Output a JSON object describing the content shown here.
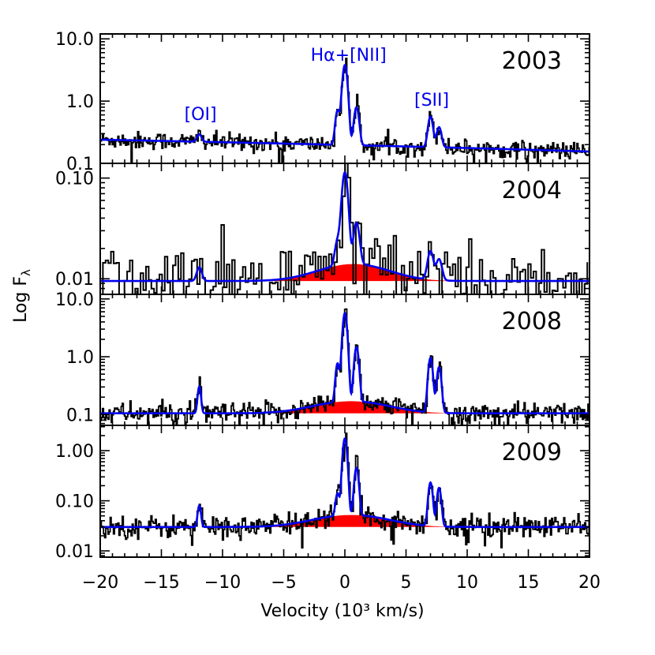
{
  "chart_data": {
    "type": "line",
    "xlabel": "Velocity (10³ km/s)",
    "ylabel": "Log F",
    "ylabel_sub": "λ",
    "xlim": [
      -20,
      20
    ],
    "xticks": [
      -20,
      -15,
      -10,
      -5,
      0,
      5,
      10,
      15,
      20
    ],
    "xtick_labels": [
      "−20",
      "−15",
      "−10",
      "−5",
      "0",
      "5",
      "10",
      "15",
      "20"
    ],
    "colors": {
      "observed": "#000000",
      "model": "#0000ee",
      "broad": "#ff0000"
    },
    "line_labels": [
      {
        "text": "[OI]",
        "panel": 0,
        "x": -11.8
      },
      {
        "text": "Hα+[NII]",
        "panel": 0,
        "x": 0.3
      },
      {
        "text": "[SII]",
        "panel": 0,
        "x": 7.1
      }
    ],
    "panels": [
      {
        "year": "2003",
        "ylim": [
          0.1,
          12
        ],
        "yticks": [
          0.1,
          1.0,
          10.0
        ],
        "ytick_labels": [
          "0.1",
          "1.0",
          "10.0"
        ],
        "continuum_start": 0.24,
        "continuum_end": 0.155,
        "noise": 0.07,
        "broad_amp": 0,
        "lines": [
          {
            "x": -11.9,
            "amp": 0.07,
            "w": 0.18
          },
          {
            "x": -0.6,
            "amp": 0.5,
            "w": 0.16
          },
          {
            "x": 0.0,
            "amp": 3.6,
            "w": 0.18
          },
          {
            "x": 0.95,
            "amp": 0.6,
            "w": 0.18
          },
          {
            "x": 7.0,
            "amp": 0.38,
            "w": 0.18
          },
          {
            "x": 7.7,
            "amp": 0.2,
            "w": 0.18
          }
        ]
      },
      {
        "year": "2004",
        "ylim": [
          0.007,
          0.14
        ],
        "yticks": [
          0.01,
          0.1
        ],
        "ytick_labels": [
          "0.01",
          "0.10"
        ],
        "continuum_start": 0.0095,
        "continuum_end": 0.0095,
        "noise": 0.17,
        "broad_amp": 0.0045,
        "broad_center": 0.7,
        "broad_sigma": 2.7,
        "lines": [
          {
            "x": -11.9,
            "amp": 0.0035,
            "w": 0.2
          },
          {
            "x": -0.6,
            "amp": 0.01,
            "w": 0.2
          },
          {
            "x": 0.0,
            "amp": 0.1,
            "w": 0.22
          },
          {
            "x": 0.95,
            "amp": 0.022,
            "w": 0.22
          },
          {
            "x": 7.0,
            "amp": 0.009,
            "w": 0.22
          },
          {
            "x": 7.7,
            "amp": 0.006,
            "w": 0.22
          }
        ]
      },
      {
        "year": "2008",
        "ylim": [
          0.065,
          12
        ],
        "yticks": [
          0.1,
          1.0,
          10.0
        ],
        "ytick_labels": [
          "0.1",
          "1.0",
          "10.0"
        ],
        "continuum_start": 0.105,
        "continuum_end": 0.105,
        "noise": 0.09,
        "broad_amp": 0.065,
        "broad_center": 0.5,
        "broad_sigma": 2.8,
        "lines": [
          {
            "x": -11.9,
            "amp": 0.2,
            "w": 0.12
          },
          {
            "x": -0.6,
            "amp": 0.6,
            "w": 0.14
          },
          {
            "x": 0.0,
            "amp": 5.5,
            "w": 0.16
          },
          {
            "x": 0.95,
            "amp": 1.3,
            "w": 0.16
          },
          {
            "x": 7.0,
            "amp": 0.85,
            "w": 0.16
          },
          {
            "x": 7.7,
            "amp": 0.55,
            "w": 0.16
          }
        ]
      },
      {
        "year": "2009",
        "ylim": [
          0.0075,
          3.2
        ],
        "yticks": [
          0.01,
          0.1,
          1.0
        ],
        "ytick_labels": [
          "0.01",
          "0.10",
          "1.00"
        ],
        "continuum_start": 0.03,
        "continuum_end": 0.03,
        "noise": 0.11,
        "broad_amp": 0.022,
        "broad_center": 0.5,
        "broad_sigma": 2.8,
        "lines": [
          {
            "x": -11.9,
            "amp": 0.05,
            "w": 0.12
          },
          {
            "x": -0.6,
            "amp": 0.09,
            "w": 0.14
          },
          {
            "x": 0.0,
            "amp": 1.7,
            "w": 0.15
          },
          {
            "x": 0.95,
            "amp": 0.4,
            "w": 0.15
          },
          {
            "x": 7.0,
            "amp": 0.2,
            "w": 0.15
          },
          {
            "x": 7.7,
            "amp": 0.15,
            "w": 0.15
          }
        ]
      }
    ]
  }
}
